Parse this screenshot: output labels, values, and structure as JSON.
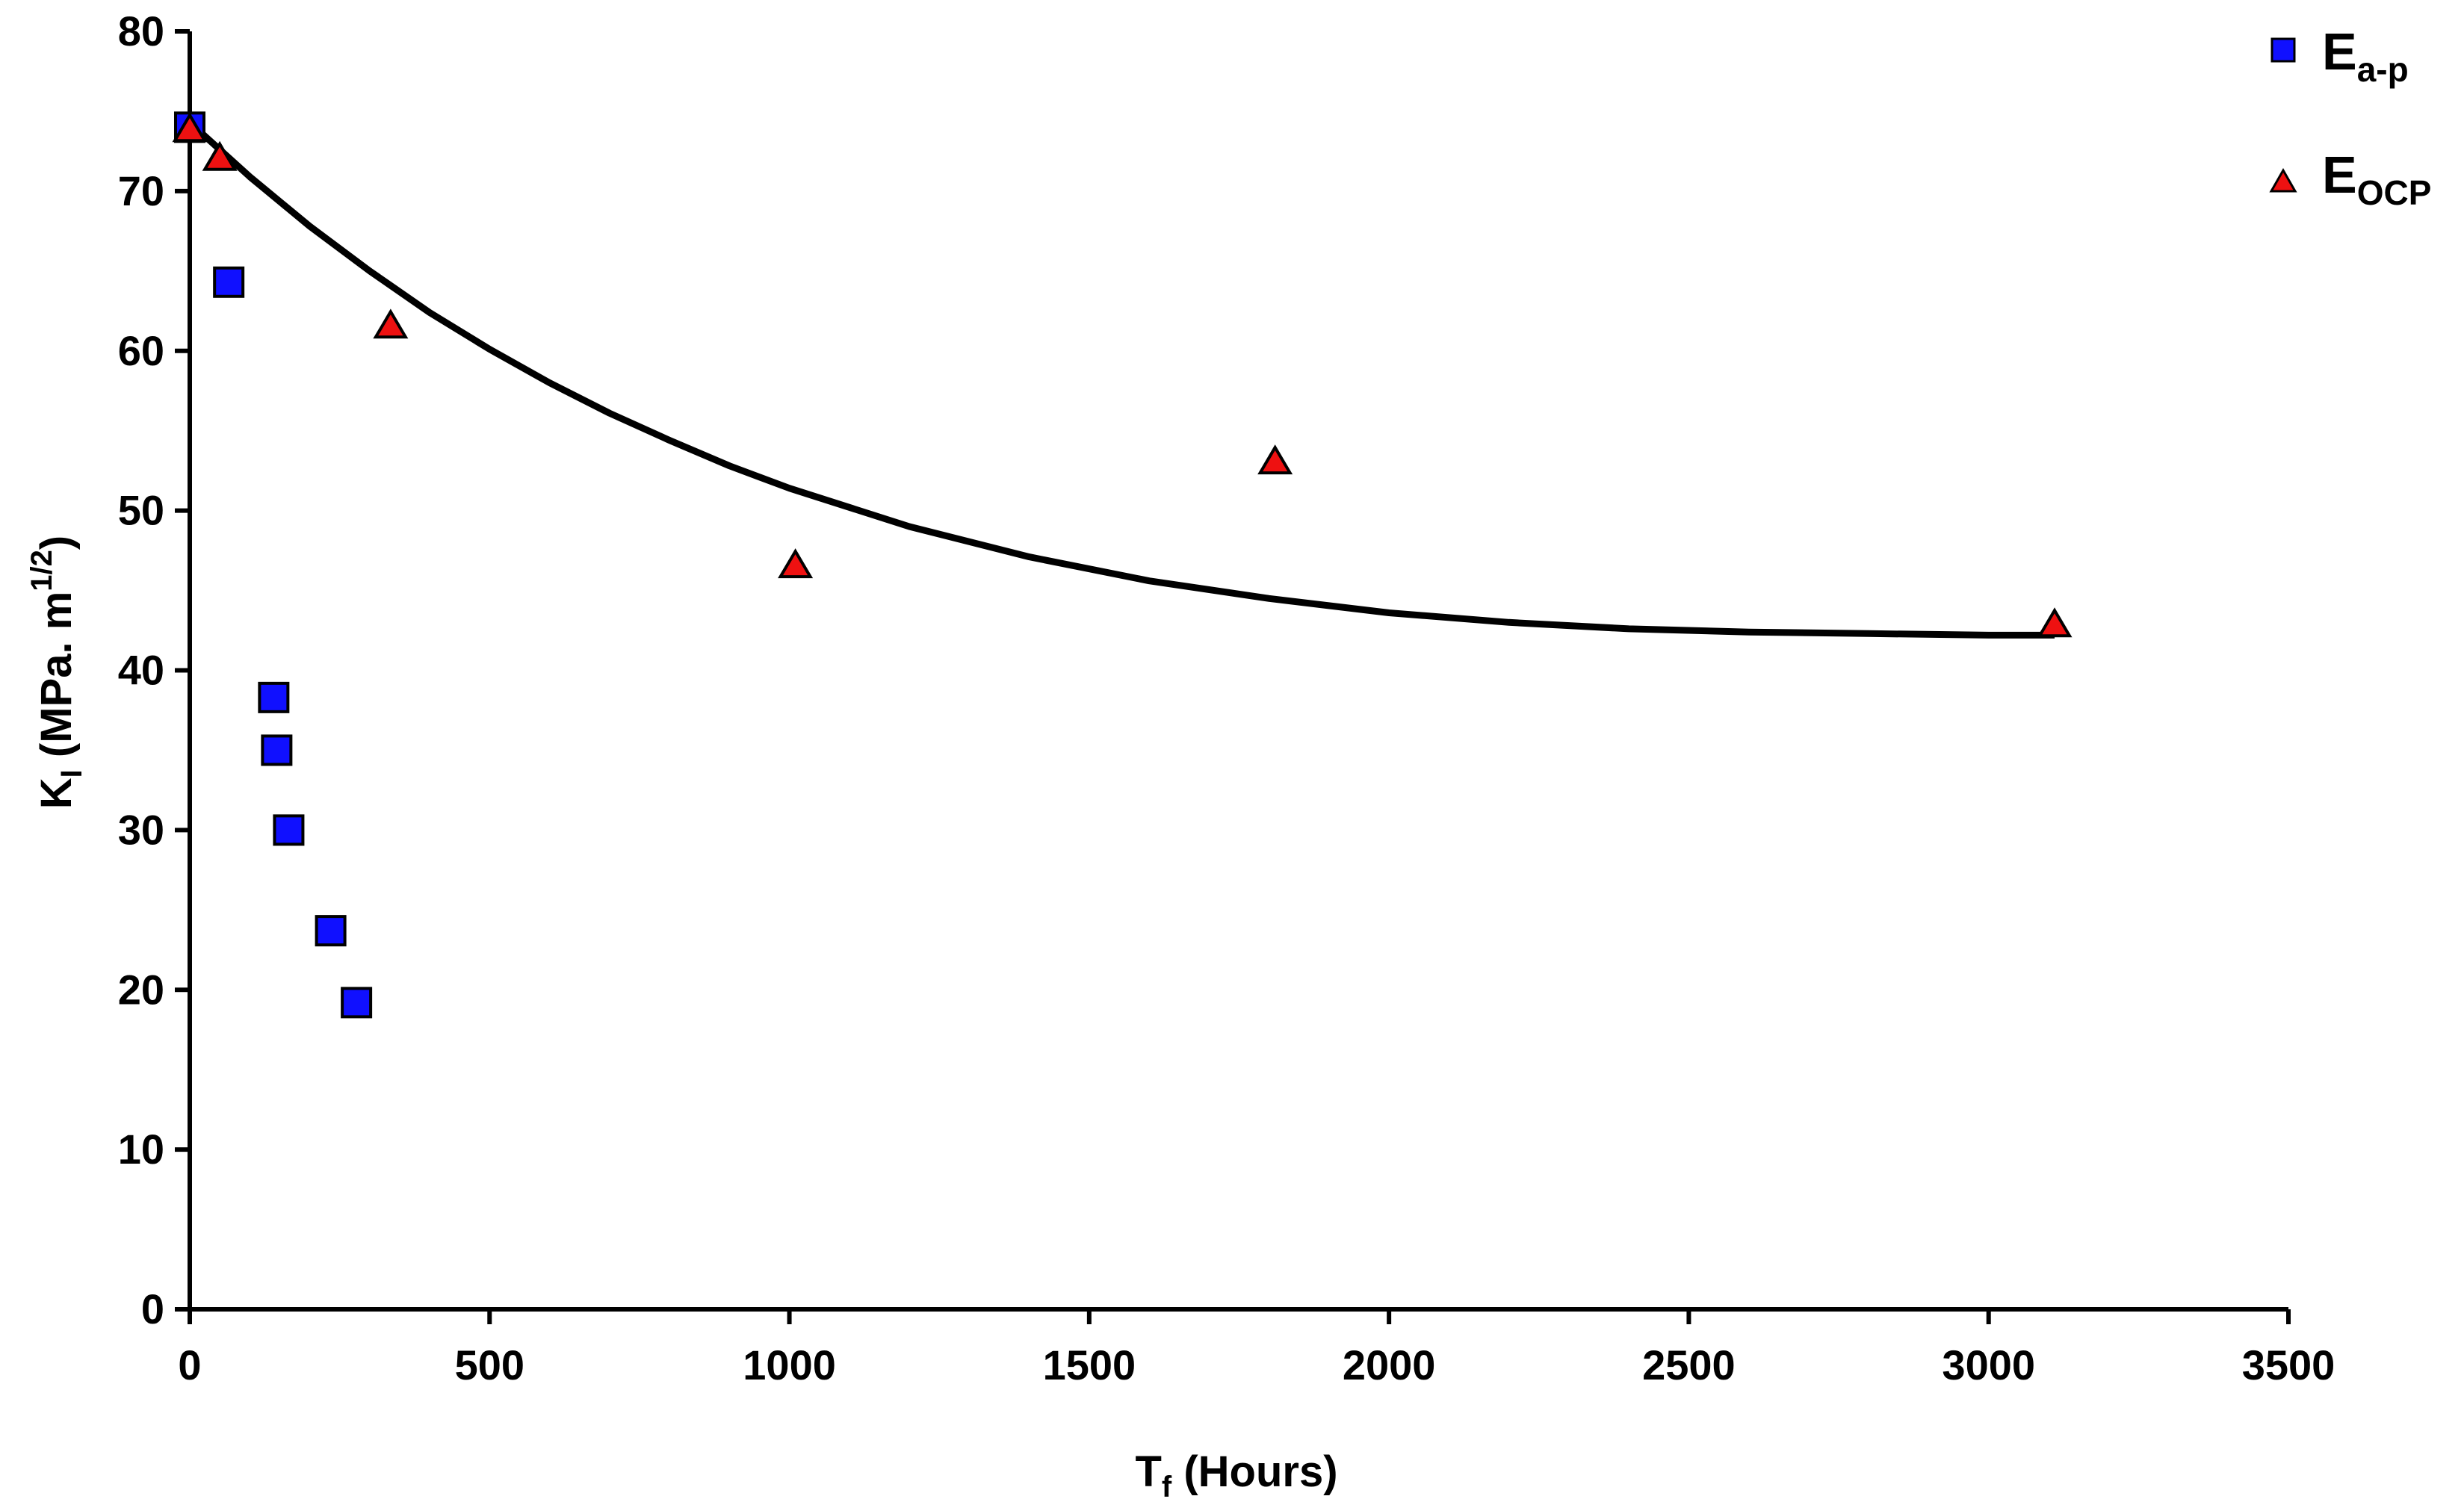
{
  "chart_data": {
    "type": "scatter",
    "xlabel": {
      "main": "T",
      "sub": "f",
      "rest": " (Hours)"
    },
    "ylabel": {
      "main": "K",
      "sub": "I",
      "rest": " (MPa. m",
      "sup": "1/2",
      "end": ")"
    },
    "xlim": [
      0,
      3500
    ],
    "ylim": [
      0,
      80
    ],
    "x_ticks": [
      0,
      500,
      1000,
      1500,
      2000,
      2500,
      3000,
      3500
    ],
    "y_ticks": [
      0,
      10,
      20,
      30,
      40,
      50,
      60,
      70,
      80
    ],
    "grid": false,
    "legend_position": "top-right",
    "series": [
      {
        "name": {
          "main": "E",
          "sub": "a-p"
        },
        "marker": "square",
        "color": "#1010ff",
        "points": [
          {
            "x": 0,
            "y": 74
          },
          {
            "x": 65,
            "y": 64.3
          },
          {
            "x": 140,
            "y": 38.3
          },
          {
            "x": 145,
            "y": 35
          },
          {
            "x": 165,
            "y": 30
          },
          {
            "x": 235,
            "y": 23.7
          },
          {
            "x": 278,
            "y": 19.2
          }
        ]
      },
      {
        "name": {
          "main": "E",
          "sub": "OCP"
        },
        "marker": "triangle",
        "color": "#ee1111",
        "points": [
          {
            "x": 0,
            "y": 73.8
          },
          {
            "x": 50,
            "y": 72
          },
          {
            "x": 335,
            "y": 61.5
          },
          {
            "x": 1010,
            "y": 46.5
          },
          {
            "x": 1810,
            "y": 53
          },
          {
            "x": 3110,
            "y": 42.8
          }
        ]
      }
    ],
    "fit_curve": {
      "type": "exponential-decay",
      "x": [
        0,
        100,
        200,
        300,
        400,
        500,
        600,
        700,
        800,
        900,
        1000,
        1200,
        1400,
        1600,
        1800,
        2000,
        2200,
        2400,
        2600,
        2800,
        3000,
        3110
      ],
      "y": [
        74.3,
        70.9,
        67.8,
        65.0,
        62.4,
        60.1,
        58.0,
        56.1,
        54.4,
        52.8,
        51.4,
        49.0,
        47.1,
        45.6,
        44.5,
        43.6,
        43.0,
        42.6,
        42.4,
        42.3,
        42.2,
        42.2
      ]
    }
  }
}
